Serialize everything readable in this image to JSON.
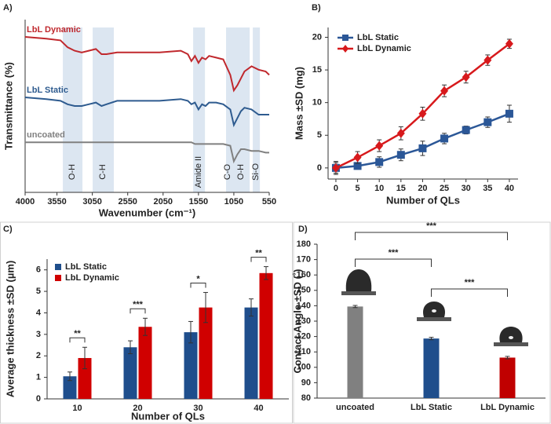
{
  "chart_data": [
    {
      "type": "line",
      "panel_label": "A)",
      "x_label": "Wavenumber (cm⁻¹)",
      "y_label": "Transmittance (%)",
      "xlim": [
        4000,
        550
      ],
      "ylim": [
        0,
        100
      ],
      "xticks": [
        4000,
        3550,
        3050,
        2550,
        2050,
        1550,
        1050,
        550
      ],
      "x": [
        4000,
        3700,
        3500,
        3400,
        3300,
        3200,
        3100,
        3000,
        2920,
        2850,
        2700,
        2400,
        2100,
        1800,
        1700,
        1650,
        1600,
        1550,
        1500,
        1450,
        1400,
        1300,
        1200,
        1100,
        1050,
        1000,
        950,
        900,
        800,
        700,
        600,
        550
      ],
      "series": [
        {
          "name": "LbL Dynamic",
          "color": "#c0282d",
          "values": [
            90,
            89,
            88,
            84,
            82,
            81,
            82,
            83,
            80,
            80,
            81,
            81,
            81,
            82,
            80,
            76,
            79,
            75,
            78,
            77,
            79,
            78,
            77,
            68,
            59,
            62,
            66,
            70,
            73,
            71,
            70,
            68
          ]
        },
        {
          "name": "LbL Static",
          "color": "#2e5b8f",
          "values": [
            55,
            54,
            53,
            51,
            50,
            50,
            51,
            52,
            50,
            51,
            53,
            53,
            53,
            54,
            53,
            51,
            52,
            48,
            51,
            50,
            52,
            52,
            51,
            48,
            39,
            43,
            47,
            49,
            48,
            45,
            45,
            45
          ]
        },
        {
          "name": "uncoated",
          "color": "#808080",
          "values": [
            29,
            29,
            29,
            29,
            29,
            29,
            29,
            29,
            29,
            29,
            29,
            29,
            29,
            29,
            29,
            29,
            28,
            28,
            28,
            28,
            28,
            28,
            28,
            27,
            18,
            22,
            25,
            25,
            24,
            24,
            23,
            23
          ]
        }
      ],
      "bands": [
        [
          3467,
          3190
        ],
        [
          3045,
          2746
        ],
        [
          1625,
          1458
        ],
        [
          1160,
          826
        ],
        [
          782,
          682
        ]
      ],
      "band_color": "#dce6f1",
      "annotations": [
        {
          "text": "O-H",
          "x": 3334
        },
        {
          "text": "C-H",
          "x": 2901
        },
        {
          "text": "Amide II",
          "x": 1547
        },
        {
          "text": "C-O",
          "x": 1137
        },
        {
          "text": "O-H",
          "x": 948
        },
        {
          "text": "Si-O",
          "x": 737
        }
      ]
    },
    {
      "type": "line",
      "panel_label": "B)",
      "x_label": "Number of QLs",
      "y_label": "Mass ±SD (mg)",
      "x": [
        0,
        5,
        10,
        15,
        20,
        25,
        30,
        35,
        40
      ],
      "xlim": [
        -1.8,
        42
      ],
      "ylim": [
        -1.7,
        21.5
      ],
      "xticks": [
        0,
        5,
        10,
        15,
        20,
        25,
        30,
        35,
        40
      ],
      "yticks": [
        0,
        5,
        10,
        15,
        20
      ],
      "legend": "upper left",
      "series": [
        {
          "name": "LbL Static",
          "color": "#2b5797",
          "marker": "square",
          "values": [
            0,
            0.3,
            0.9,
            2,
            3,
            4.5,
            5.8,
            7,
            8.3
          ],
          "errors": [
            0.8,
            0.5,
            0.8,
            0.9,
            1.1,
            0.8,
            0.6,
            0.8,
            1.3
          ]
        },
        {
          "name": "LbL Dynamic",
          "color": "#d7191c",
          "marker": "diamond",
          "values": [
            0,
            1.6,
            3.4,
            5.3,
            8.3,
            11.8,
            13.9,
            16.5,
            19
          ],
          "errors": [
            1,
            0.9,
            0.9,
            1,
            1,
            0.9,
            0.9,
            0.8,
            0.7
          ]
        }
      ]
    },
    {
      "type": "bar",
      "panel_label": "C)",
      "x_label": "Number of QLs",
      "y_label": "Average thickness ±SD (µm)",
      "categories": [
        "10",
        "20",
        "30",
        "40"
      ],
      "ylim": [
        0,
        6.5
      ],
      "yticks": [
        0,
        1,
        2,
        3,
        4,
        5,
        6
      ],
      "legend": "upper left",
      "series": [
        {
          "name": "LbL Static",
          "color": "#1f4e8c",
          "values": [
            1.05,
            2.4,
            3.1,
            4.25
          ],
          "errors": [
            0.2,
            0.3,
            0.5,
            0.4
          ]
        },
        {
          "name": "LbL Dynamic",
          "color": "#d00000",
          "values": [
            1.9,
            3.35,
            4.25,
            5.85
          ],
          "errors": [
            0.5,
            0.4,
            0.7,
            0.3
          ]
        }
      ],
      "significance": [
        "**",
        "***",
        "*",
        "**"
      ]
    },
    {
      "type": "bar",
      "panel_label": "D)",
      "y_label": "Contact Angle ±SD (˚)",
      "categories": [
        "uncoated",
        "LbL Static",
        "LbL Dynamic"
      ],
      "values": [
        139.5,
        118.7,
        106.3
      ],
      "errors": [
        0.7,
        0.8,
        0.8
      ],
      "colors": [
        "#808080",
        "#1f4e8c",
        "#c00000"
      ],
      "ylim": [
        80,
        180
      ],
      "yticks": [
        80,
        90,
        100,
        110,
        120,
        130,
        140,
        150,
        160,
        170,
        180
      ],
      "significance": [
        {
          "from": 0,
          "to": 2,
          "label": "***"
        },
        {
          "from": 0,
          "to": 1,
          "label": "***"
        },
        {
          "from": 1,
          "to": 2,
          "label": "***"
        }
      ]
    }
  ]
}
